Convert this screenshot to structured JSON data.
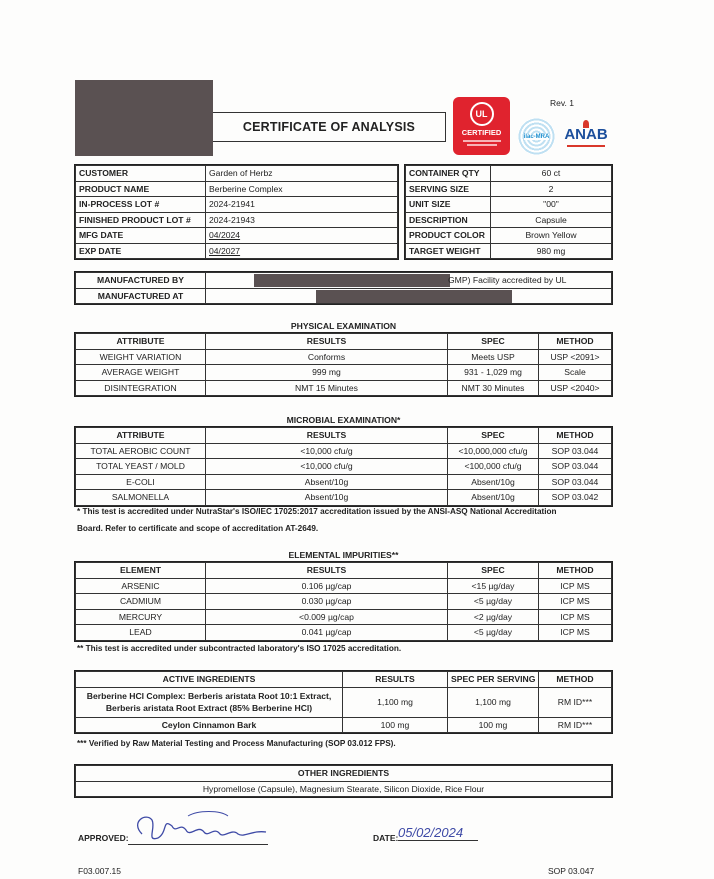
{
  "header": {
    "title": "CERTIFICATE OF ANALYSIS",
    "revision": "Rev. 1",
    "logos": [
      {
        "name": "ul-certified-logo",
        "text": "CERTIFIED",
        "color": "#e0232e"
      },
      {
        "name": "ilac-mra-logo",
        "text": "ilac-MRA",
        "color": "#1d8fcf"
      },
      {
        "name": "anab-logo",
        "text": "ANAB",
        "color": "#1c4f9c"
      }
    ]
  },
  "product_info": [
    [
      "CUSTOMER",
      "Garden of Herbz"
    ],
    [
      "PRODUCT NAME",
      "Berberine Complex"
    ],
    [
      "IN-PROCESS LOT #",
      "2024-21941"
    ],
    [
      "FINISHED PRODUCT LOT #",
      "2024-21943"
    ],
    [
      "MFG DATE",
      "04/2024"
    ],
    [
      "EXP DATE",
      "04/2027"
    ]
  ],
  "container_info": [
    [
      "CONTAINER QTY",
      "60 ct"
    ],
    [
      "SERVING SIZE",
      "2"
    ],
    [
      "UNIT SIZE",
      "\"00\""
    ],
    [
      "DESCRIPTION",
      "Capsule"
    ],
    [
      "PRODUCT COLOR",
      "Brown Yellow"
    ],
    [
      "TARGET WEIGHT",
      "980 mg"
    ]
  ],
  "manufacturer": {
    "by_label": "MANUFACTURED BY",
    "by_value": "GMP) Facility accredited by UL",
    "at_label": "MANUFACTURED AT"
  },
  "physical": {
    "title": "PHYSICAL EXAMINATION",
    "headers": [
      "ATTRIBUTE",
      "RESULTS",
      "SPEC",
      "METHOD"
    ],
    "rows": [
      [
        "WEIGHT VARIATION",
        "Conforms",
        "Meets USP",
        "USP <2091>"
      ],
      [
        "AVERAGE WEIGHT",
        "999 mg",
        "931 - 1,029 mg",
        "Scale"
      ],
      [
        "DISINTEGRATION",
        "NMT 15 Minutes",
        "NMT 30 Minutes",
        "USP <2040>"
      ]
    ]
  },
  "microbial": {
    "title": "MICROBIAL EXAMINATION*",
    "headers": [
      "ATTRIBUTE",
      "RESULTS",
      "SPEC",
      "METHOD"
    ],
    "rows": [
      [
        "TOTAL AEROBIC COUNT",
        "<10,000 cfu/g",
        "<10,000,000 cfu/g",
        "SOP 03.044"
      ],
      [
        "TOTAL YEAST / MOLD",
        "<10,000 cfu/g",
        "<100,000 cfu/g",
        "SOP 03.044"
      ],
      [
        "E-COLI",
        "Absent/10g",
        "Absent/10g",
        "SOP 03.044"
      ],
      [
        "SALMONELLA",
        "Absent/10g",
        "Absent/10g",
        "SOP 03.042"
      ]
    ],
    "footnote_line1": "* This test is accredited under NutraStar's ISO/IEC 17025:2017 accreditation issued by the ANSI-ASQ National Accreditation",
    "footnote_line2": "Board. Refer to certificate and scope of accreditation AT-2649."
  },
  "elemental": {
    "title": "ELEMENTAL IMPURITIES**",
    "headers": [
      "ELEMENT",
      "RESULTS",
      "SPEC",
      "METHOD"
    ],
    "rows": [
      [
        "ARSENIC",
        "0.106 µg/cap",
        "<15 µg/day",
        "ICP MS"
      ],
      [
        "CADMIUM",
        "0.030 µg/cap",
        "<5 µg/day",
        "ICP MS"
      ],
      [
        "MERCURY",
        "<0.009 µg/cap",
        "<2 µg/day",
        "ICP MS"
      ],
      [
        "LEAD",
        "0.041 µg/cap",
        "<5 µg/day",
        "ICP MS"
      ]
    ],
    "footnote": "** This test is accredited under subcontracted laboratory's ISO 17025 accreditation."
  },
  "active": {
    "headers": [
      "ACTIVE INGREDIENTS",
      "RESULTS",
      "SPEC PER SERVING",
      "METHOD"
    ],
    "rows": [
      [
        "Berberine HCl Complex: Berberis aristata Root 10:1 Extract,\nBerberis aristata Root Extract (85% Berberine HCl)",
        "1,100 mg",
        "1,100 mg",
        "RM ID***"
      ],
      [
        "Ceylon Cinnamon Bark",
        "100 mg",
        "100 mg",
        "RM ID***"
      ]
    ],
    "footnote": "*** Verified by Raw Material Testing and Process Manufacturing (SOP 03.012 FPS)."
  },
  "other": {
    "title": "OTHER INGREDIENTS",
    "value": "Hypromellose (Capsule), Magnesium Stearate, Silicon Dioxide, Rice Flour"
  },
  "footer": {
    "approved_label": "APPROVED:",
    "date_label": "DATE:",
    "date_value": "05/02/2024",
    "form_code": "F03.007.15",
    "sop_code": "SOP 03.047"
  }
}
